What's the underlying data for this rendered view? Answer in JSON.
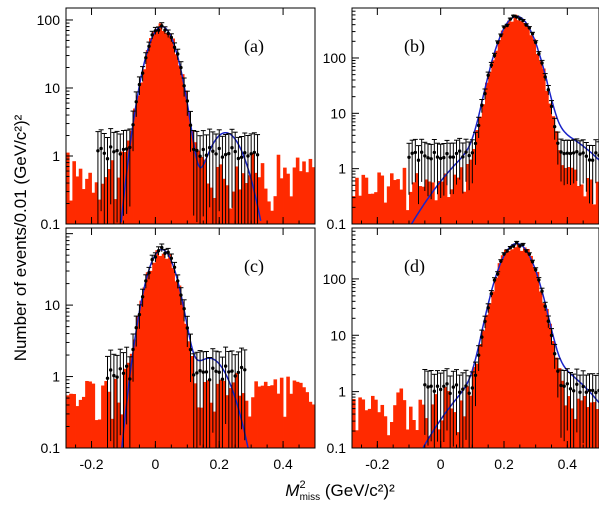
{
  "figure": {
    "ylabel": "Number of events/0.01 (GeV/c²)²",
    "xlabel_main": "M",
    "xlabel_sup": "2",
    "xlabel_sub": "miss",
    "xlabel_rest": " (GeV/c²)²"
  },
  "colors": {
    "histogram": "#ff2a00",
    "fit": "#1a24c8",
    "data": "#000000"
  },
  "chart_data": [
    {
      "type": "bar",
      "panel": "(a)",
      "xlim": [
        -0.28,
        0.5
      ],
      "ylim": [
        0.1,
        150
      ],
      "yscale": "log",
      "xticks": [
        -0.2,
        0,
        0.2,
        0.4
      ],
      "xtick_labels": [
        "",
        "",
        "",
        ""
      ],
      "yticks": [
        0.1,
        1,
        10,
        100
      ],
      "ytick_labels": [
        "0.1",
        "1",
        "10",
        "100"
      ],
      "peak": 0.02,
      "histogram": {
        "bin_width": 0.01,
        "start": -0.28,
        "end": 0.5,
        "peak_height": 75,
        "sigma": 0.035,
        "tail": 0.6,
        "tail_scale": 0.25
      },
      "fit": {
        "components": [
          {
            "amp": 80,
            "mu": 0.02,
            "sigma": 0.035
          },
          {
            "amp": 2.2,
            "mu": 0.22,
            "sigma": 0.045
          }
        ]
      },
      "data": {
        "peak_height": 80,
        "sigma": 0.035,
        "side_level": 1.0,
        "range": [
          -0.18,
          0.32
        ]
      }
    },
    {
      "type": "bar",
      "panel": "(b)",
      "xlim": [
        -0.28,
        0.5
      ],
      "ylim": [
        0.1,
        800
      ],
      "yscale": "log",
      "xticks": [
        -0.2,
        0,
        0.2,
        0.4
      ],
      "xtick_labels": [
        "",
        "",
        "",
        ""
      ],
      "yticks": [
        0.1,
        1,
        10,
        100
      ],
      "ytick_labels": [
        "0.1",
        "1",
        "10",
        "100"
      ],
      "peak": 0.24,
      "histogram": {
        "bin_width": 0.01,
        "start": -0.28,
        "end": 0.5,
        "peak_height": 520,
        "sigma": 0.04,
        "tail": 0.6,
        "tail_scale": 0.12
      },
      "fit": {
        "components": [
          {
            "amp": 560,
            "mu": 0.24,
            "sigma": 0.04
          },
          {
            "amp": 6,
            "mu": 0.28,
            "sigma": 0.13
          }
        ]
      },
      "data": {
        "peak_height": 560,
        "sigma": 0.04,
        "side_level": 1.5,
        "range": [
          -0.1,
          0.5
        ]
      }
    },
    {
      "type": "bar",
      "panel": "(c)",
      "xlim": [
        -0.28,
        0.5
      ],
      "ylim": [
        0.1,
        120
      ],
      "yscale": "log",
      "xticks": [
        -0.2,
        0,
        0.2,
        0.4
      ],
      "xtick_labels": [
        "-0.2",
        "0",
        "0.2",
        "0.4"
      ],
      "yticks": [
        0.1,
        1,
        10
      ],
      "ytick_labels": [
        "0.1",
        "1",
        "10"
      ],
      "peak": 0.02,
      "histogram": {
        "bin_width": 0.01,
        "start": -0.28,
        "end": 0.5,
        "peak_height": 55,
        "sigma": 0.035,
        "tail": 0.6,
        "tail_scale": 0.2
      },
      "fit": {
        "components": [
          {
            "amp": 60,
            "mu": 0.02,
            "sigma": 0.035
          },
          {
            "amp": 1.8,
            "mu": 0.17,
            "sigma": 0.05
          }
        ]
      },
      "data": {
        "peak_height": 60,
        "sigma": 0.035,
        "side_level": 1.0,
        "range": [
          -0.15,
          0.28
        ]
      }
    },
    {
      "type": "bar",
      "panel": "(d)",
      "xlim": [
        -0.28,
        0.5
      ],
      "ylim": [
        0.1,
        800
      ],
      "yscale": "log",
      "xticks": [
        -0.2,
        0,
        0.2,
        0.4
      ],
      "xtick_labels": [
        "-0.2",
        "0",
        "0.2",
        "0.4"
      ],
      "yticks": [
        0.1,
        1,
        10,
        100
      ],
      "ytick_labels": [
        "0.1",
        "1",
        "10",
        "100"
      ],
      "peak": 0.24,
      "histogram": {
        "bin_width": 0.01,
        "start": -0.28,
        "end": 0.5,
        "peak_height": 420,
        "sigma": 0.04,
        "tail": 0.6,
        "tail_scale": 0.15
      },
      "fit": {
        "components": [
          {
            "amp": 420,
            "mu": 0.24,
            "sigma": 0.04
          },
          {
            "amp": 4,
            "mu": 0.27,
            "sigma": 0.12
          }
        ]
      },
      "data": {
        "peak_height": 420,
        "sigma": 0.04,
        "side_level": 1.0,
        "range": [
          -0.05,
          0.5
        ]
      }
    }
  ]
}
